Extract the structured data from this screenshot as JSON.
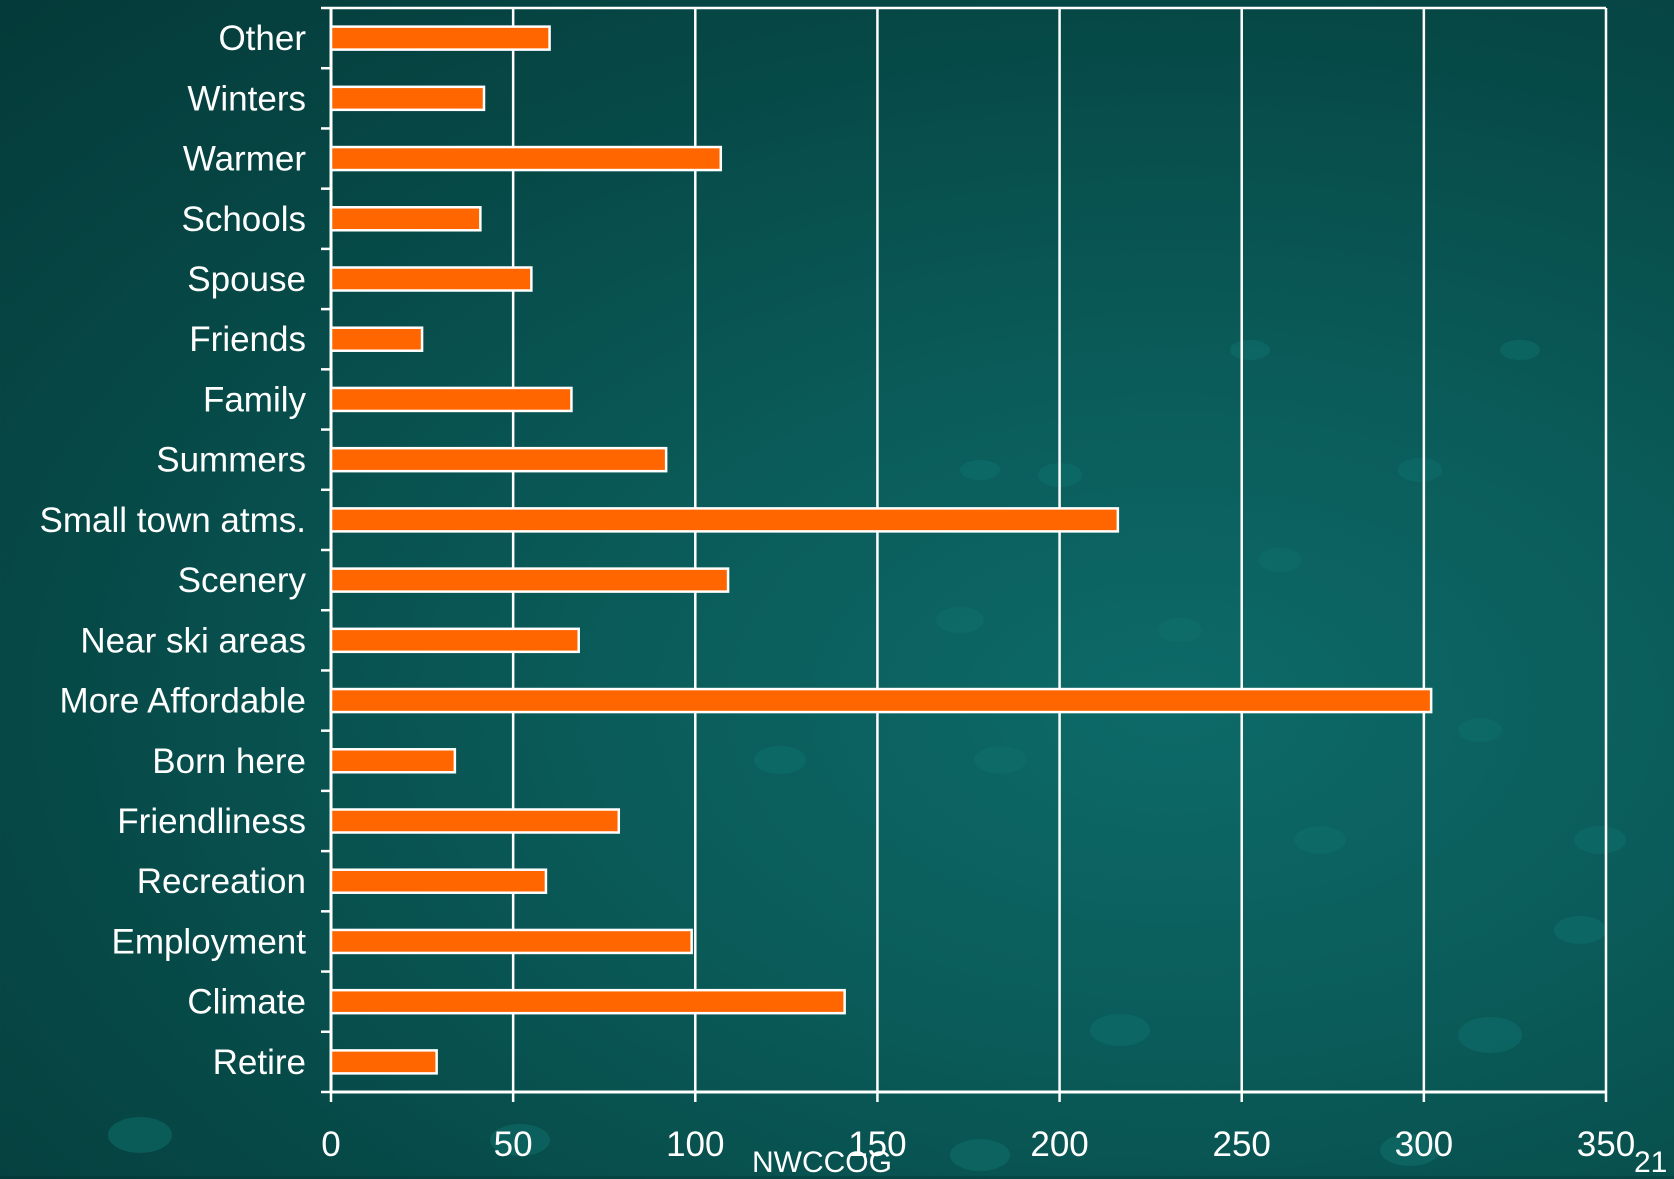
{
  "slide": {
    "footer_text": "NWCCOG",
    "page_number": "21"
  },
  "colors": {
    "bar_fill": "#ff6600",
    "bar_stroke": "#ffffff",
    "axis": "#ffffff",
    "text": "#ffffff",
    "background": "#0a5b59"
  },
  "chart_data": {
    "type": "bar",
    "orientation": "horizontal",
    "categories": [
      "Other",
      "Winters",
      "Warmer",
      "Schools",
      "Spouse",
      "Friends",
      "Family",
      "Summers",
      "Small town atms.",
      "Scenery",
      "Near ski areas",
      "More Affordable",
      "Born here",
      "Friendliness",
      "Recreation",
      "Employment",
      "Climate",
      "Retire"
    ],
    "values": [
      60,
      42,
      107,
      41,
      55,
      25,
      66,
      92,
      216,
      109,
      68,
      302,
      34,
      79,
      59,
      99,
      141,
      29
    ],
    "title": "",
    "xlabel": "",
    "ylabel": "",
    "xlim": [
      0,
      350
    ],
    "x_ticks": [
      "0",
      "50",
      "100",
      "150",
      "200",
      "250",
      "300",
      "350"
    ],
    "grid": "vertical gridlines on",
    "legend": "none"
  }
}
